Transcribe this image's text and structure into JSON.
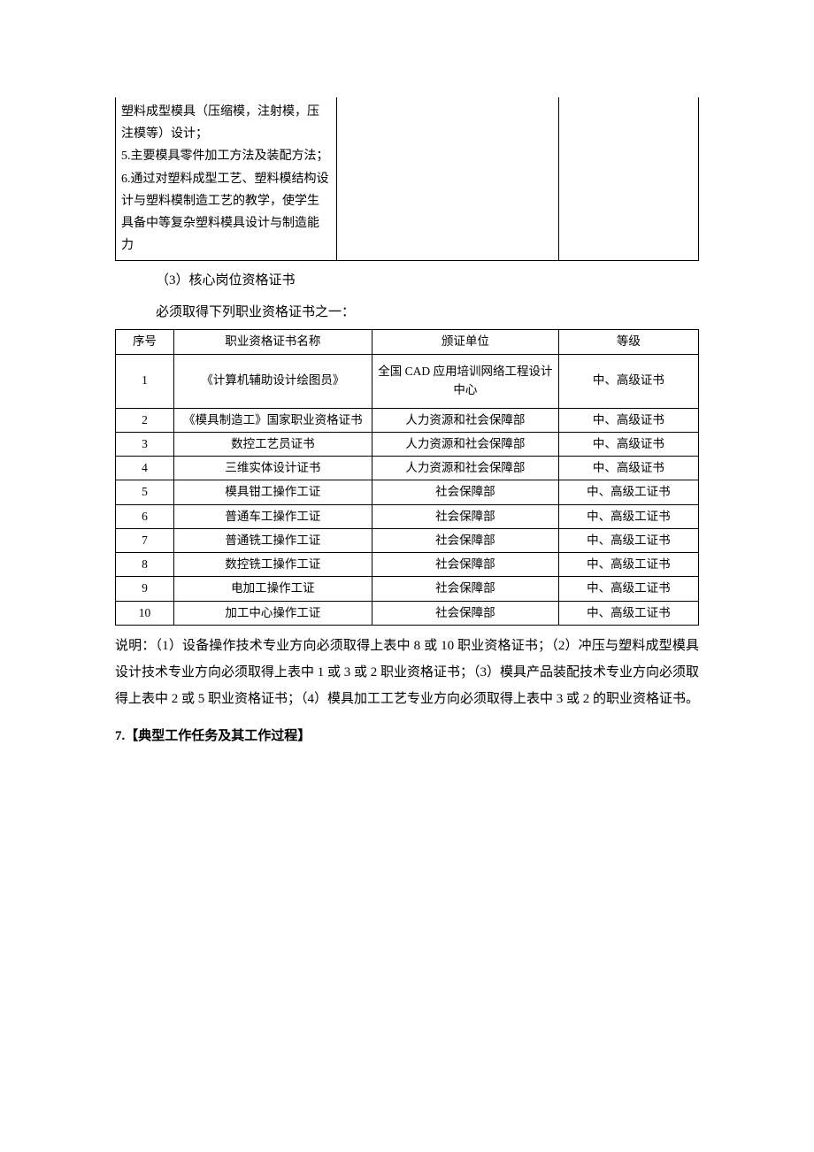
{
  "topTable": {
    "colWidths": [
      "38%",
      "38%",
      "24%"
    ],
    "cell1": "塑料成型模具（压缩模，注射模，压注模等）设计；\n5.主要模具零件加工方法及装配方法；\n6.通过对塑料成型工艺、塑料模结构设计与塑料模制造工艺的教学，使学生具备中等复杂塑料模具设计与制造能力",
    "cell2": "",
    "cell3": ""
  },
  "para1": "（3）核心岗位资格证书",
  "para2": "必须取得下列职业资格证书之一：",
  "certTable": {
    "colWidths": [
      "10%",
      "34%",
      "32%",
      "24%"
    ],
    "headers": [
      "序号",
      "职业资格证书名称",
      "颁证单位",
      "等级"
    ],
    "rows": [
      {
        "n": "1",
        "name": "《计算机辅助设计绘图员》",
        "org": "全国 CAD 应用培训网络工程设计中心",
        "level": "中、高级证书",
        "tall": true
      },
      {
        "n": "2",
        "name": "《模具制造工》国家职业资格证书",
        "org": "人力资源和社会保障部",
        "level": "中、高级证书"
      },
      {
        "n": "3",
        "name": "数控工艺员证书",
        "org": "人力资源和社会保障部",
        "level": "中、高级证书"
      },
      {
        "n": "4",
        "name": "三维实体设计证书",
        "org": "人力资源和社会保障部",
        "level": "中、高级证书"
      },
      {
        "n": "5",
        "name": "模具钳工操作工证",
        "org": "社会保障部",
        "level": "中、高级工证书"
      },
      {
        "n": "6",
        "name": "普通车工操作工证",
        "org": "社会保障部",
        "level": "中、高级工证书"
      },
      {
        "n": "7",
        "name": "普通铣工操作工证",
        "org": "社会保障部",
        "level": "中、高级工证书"
      },
      {
        "n": "8",
        "name": "数控铣工操作工证",
        "org": "社会保障部",
        "level": "中、高级工证书"
      },
      {
        "n": "9",
        "name": "电加工操作工证",
        "org": "社会保障部",
        "level": "中、高级工证书"
      },
      {
        "n": "10",
        "name": "加工中心操作工证",
        "org": "社会保障部",
        "level": "中、高级工证书"
      }
    ]
  },
  "explain": "说明：（1）设备操作技术专业方向必须取得上表中 8 或 10 职业资格证书；（2）冲压与塑料成型模具设计技术专业方向必须取得上表中 1 或 3 或 2 职业资格证书；（3）模具产品装配技术专业方向必须取得上表中 2 或 5 职业资格证书；（4）模具加工工艺专业方向必须取得上表中 3 或 2 的职业资格证书。",
  "section7": "7.【典型工作任务及其工作过程】"
}
